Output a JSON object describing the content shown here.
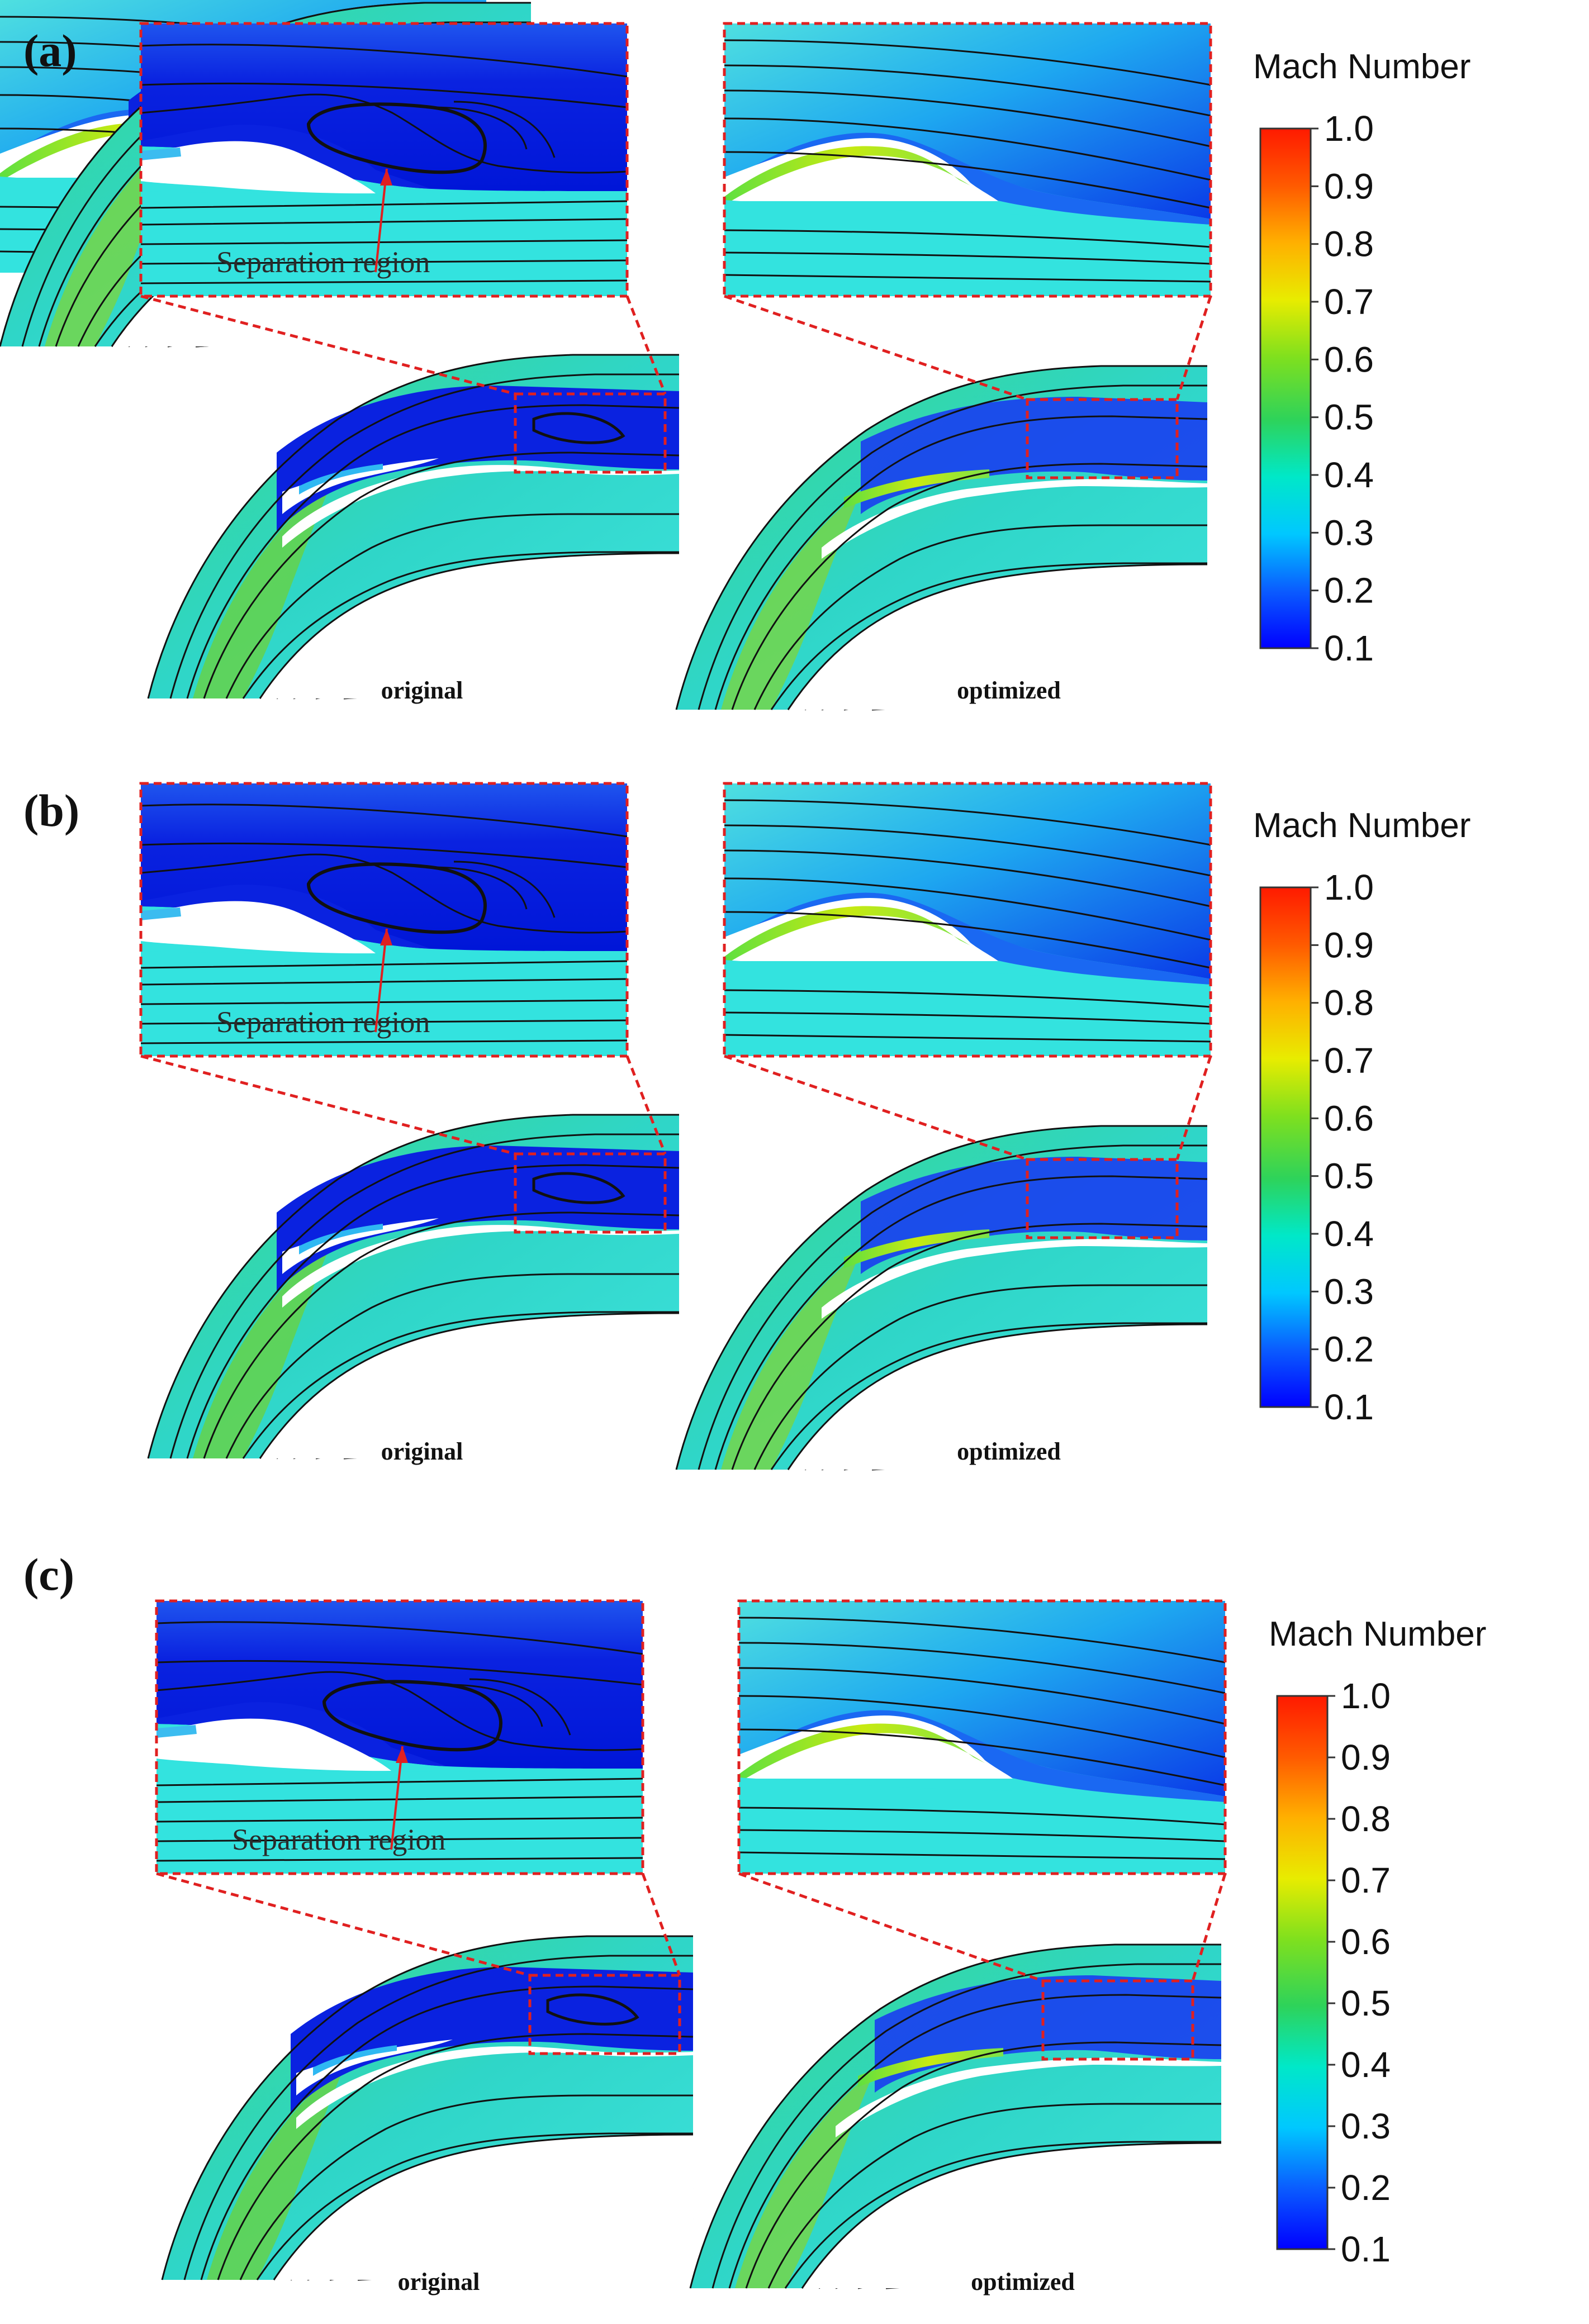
{
  "figure": {
    "panels": [
      {
        "label": "(a)",
        "captions": [
          "original",
          "optimized"
        ],
        "annotation": "Separation region"
      },
      {
        "label": "(b)",
        "captions": [
          "original",
          "optimized"
        ],
        "annotation": "Separation region"
      },
      {
        "label": "(c)",
        "captions": [
          "original",
          "optimized"
        ],
        "annotation": "Separation region"
      }
    ],
    "colorbar": {
      "title": "Mach Number",
      "ticks": [
        "1.0",
        "0.9",
        "0.8",
        "0.7",
        "0.6",
        "0.5",
        "0.4",
        "0.3",
        "0.2",
        "0.1"
      ],
      "min": 0.1,
      "max": 1.0,
      "colormap": [
        "#0000ff",
        "#0a5cff",
        "#00c8ff",
        "#00e8c8",
        "#2ed35a",
        "#7fe01e",
        "#e8ec00",
        "#ffb000",
        "#ff5a00",
        "#ff1a00"
      ]
    },
    "colors": {
      "low_speed": "#0a22e0",
      "free_stream": "#33e3df",
      "jet": "#7be34a",
      "callout": "#e02020"
    }
  }
}
